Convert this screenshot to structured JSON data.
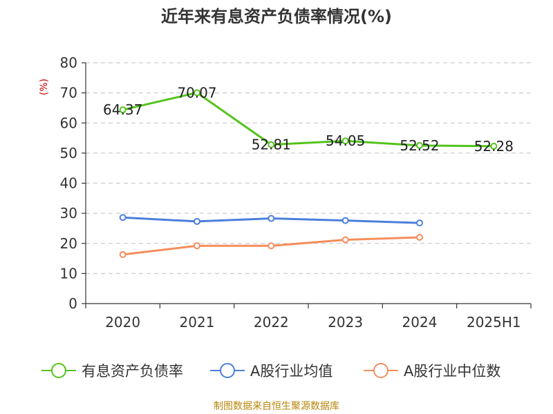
{
  "chart_data": {
    "type": "line",
    "title": "近年来有息资产负债率情况(%)",
    "ylabel": "(%)",
    "xlabel": "",
    "categories": [
      "2020",
      "2021",
      "2022",
      "2023",
      "2024",
      "2025H1"
    ],
    "ylim": [
      0,
      80
    ],
    "yticks": [
      0,
      10,
      20,
      30,
      40,
      50,
      60,
      70,
      80
    ],
    "grid": true,
    "legend_position": "bottom",
    "series": [
      {
        "name": "有息资产负债率",
        "color": "#52c41a",
        "show_labels": true,
        "values": [
          64.37,
          70.07,
          52.81,
          54.05,
          52.52,
          52.28
        ]
      },
      {
        "name": "A股行业均值",
        "color": "#4a7fdc",
        "show_labels": false,
        "values": [
          28.6,
          27.3,
          28.3,
          27.6,
          26.8,
          null
        ]
      },
      {
        "name": "A股行业中位数",
        "color": "#f58d5a",
        "show_labels": false,
        "values": [
          16.3,
          19.2,
          19.2,
          21.2,
          22.0,
          null
        ]
      }
    ]
  },
  "footer": {
    "source": "制图数据来自恒生聚源数据库"
  }
}
